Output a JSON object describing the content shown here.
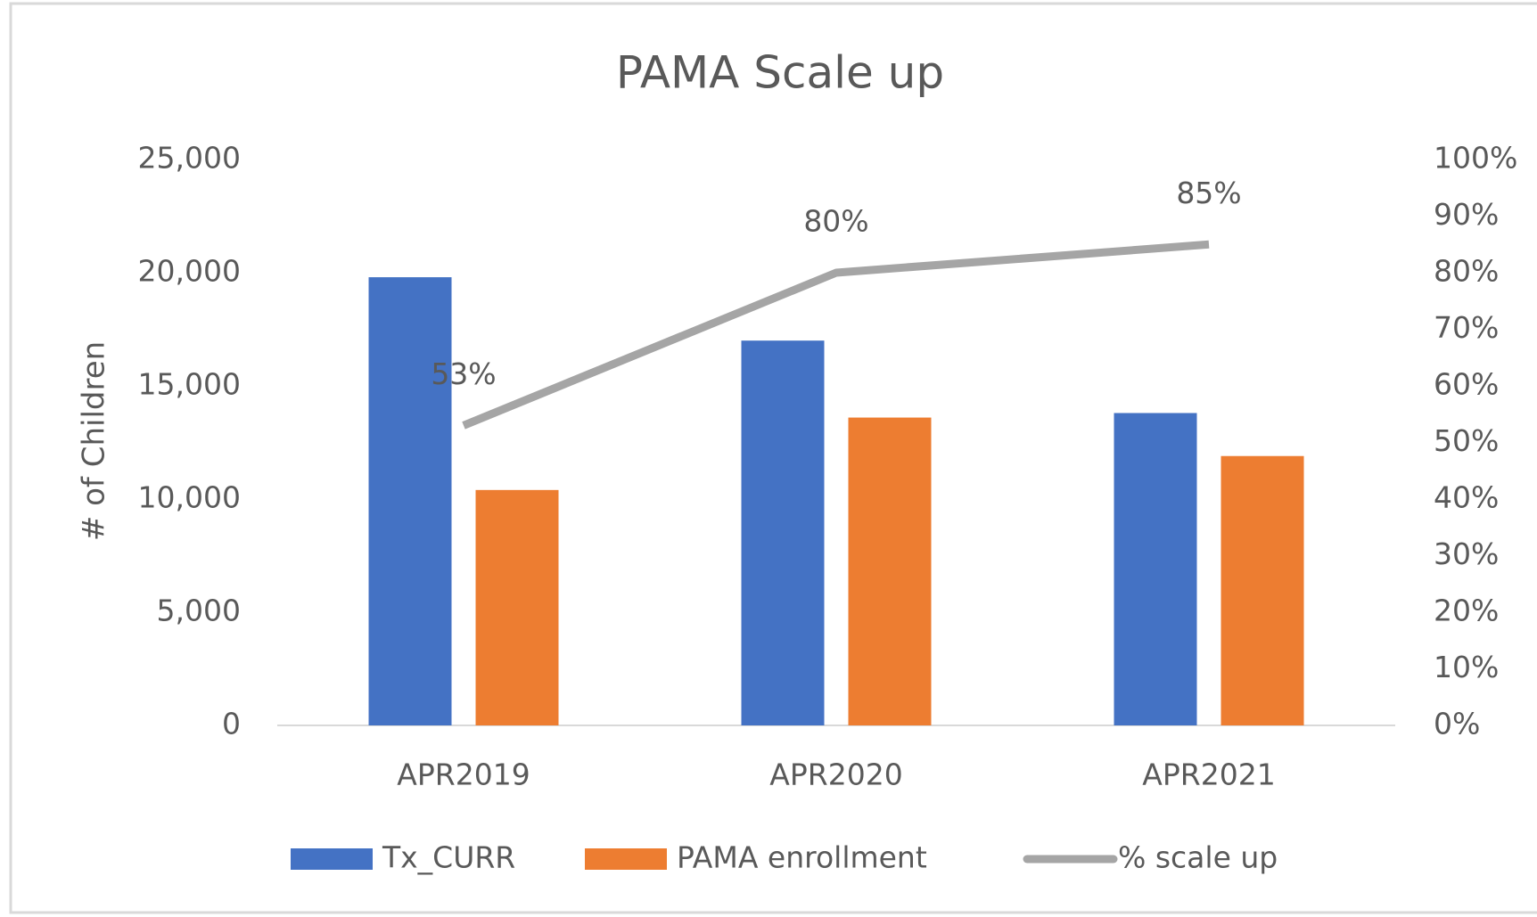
{
  "chart_data": {
    "type": "bar",
    "title": "PAMA Scale up",
    "ylabel": "# of Children",
    "categories": [
      "APR2019",
      "APR2020",
      "APR2021"
    ],
    "series": [
      {
        "name": "Tx_CURR",
        "color": "#4472c4",
        "values": [
          19800,
          17000,
          13800
        ]
      },
      {
        "name": "PAMA enrollment",
        "color": "#ed7d31",
        "values": [
          10400,
          13600,
          11900
        ]
      },
      {
        "name": "% scale up",
        "type": "line",
        "axis": "y2",
        "color": "#a5a5a5",
        "values": [
          53,
          80,
          85
        ],
        "value_labels": [
          "53%",
          "80%",
          "85%"
        ]
      }
    ],
    "ylim": [
      0,
      25000
    ],
    "yticks": [
      0,
      {
        "value": 5000,
        "label": "5,000"
      },
      {
        "value": 10000,
        "label": "10,000"
      },
      {
        "value": 15000,
        "label": "15,000"
      },
      {
        "value": 20000,
        "label": "20,000"
      },
      {
        "value": 25000,
        "label": "25,000"
      }
    ],
    "y2lim": [
      0,
      100
    ],
    "y2ticks": [
      {
        "value": 0,
        "label": "0%"
      },
      {
        "value": 10,
        "label": "10%"
      },
      {
        "value": 20,
        "label": "20%"
      },
      {
        "value": 30,
        "label": "30%"
      },
      {
        "value": 40,
        "label": "40%"
      },
      {
        "value": 50,
        "label": "50%"
      },
      {
        "value": 60,
        "label": "60%"
      },
      {
        "value": 70,
        "label": "70%"
      },
      {
        "value": 80,
        "label": "80%"
      },
      {
        "value": 90,
        "label": "90%"
      },
      {
        "value": 100,
        "label": "100%"
      }
    ],
    "grid": false,
    "legend": "bottom"
  }
}
